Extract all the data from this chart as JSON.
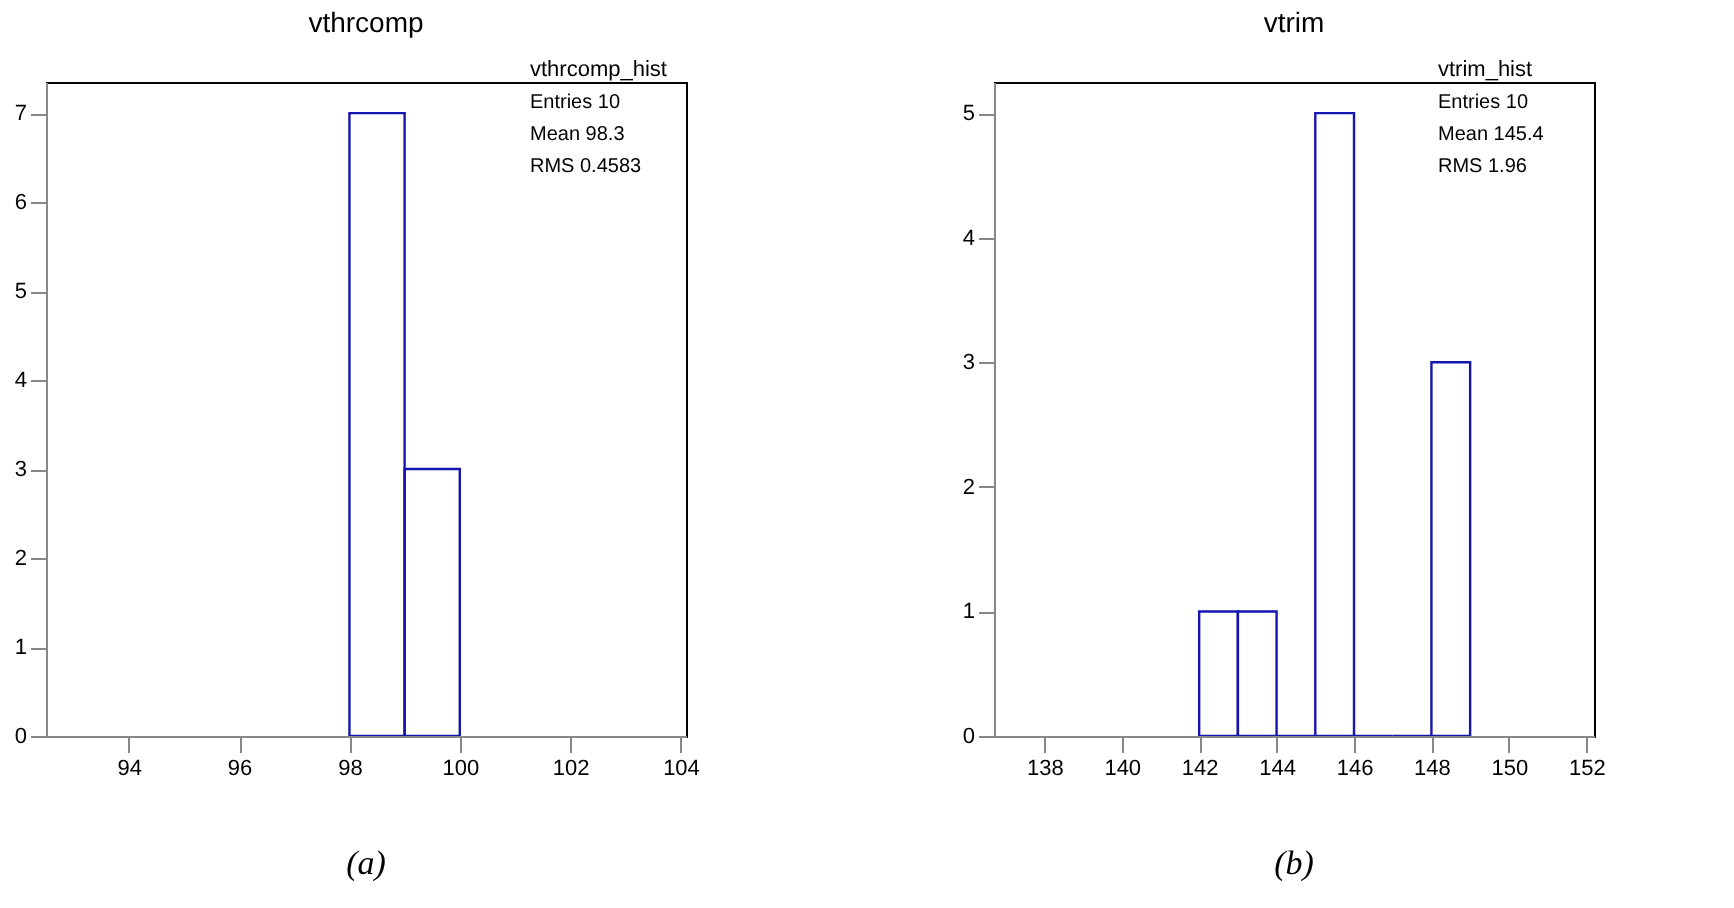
{
  "chart_data": [
    {
      "type": "histogram",
      "title": "vthrcomp",
      "bins": [
        98,
        99,
        100
      ],
      "values": [
        7,
        3
      ],
      "color": "#1515b0",
      "xlim": [
        92.5,
        104.1
      ],
      "xticks": [
        94,
        96,
        98,
        100,
        102,
        104
      ],
      "ylim": [
        0,
        7.35
      ],
      "yticks": [
        0,
        1,
        2,
        3,
        4,
        5,
        6,
        7
      ],
      "annotations": [
        "vthrcomp_hist",
        "Entries 10",
        "Mean 98.3",
        "RMS 0.4583",
        "(a)"
      ]
    },
    {
      "type": "histogram",
      "title": "vtrim",
      "bins": [
        142,
        143,
        144,
        145,
        146,
        147,
        148,
        149
      ],
      "values": [
        1,
        1,
        0,
        5,
        0,
        0,
        3
      ],
      "color": "#1515b0",
      "xlim": [
        136.7,
        152.2
      ],
      "xticks": [
        138,
        140,
        142,
        144,
        146,
        148,
        150,
        152
      ],
      "ylim": [
        0,
        5.25
      ],
      "yticks": [
        0,
        1,
        2,
        3,
        4,
        5
      ],
      "annotations": [
        "vtrim_hist",
        "Entries 10",
        "Mean 145.4",
        "RMS 1.96",
        "(b)"
      ]
    }
  ]
}
